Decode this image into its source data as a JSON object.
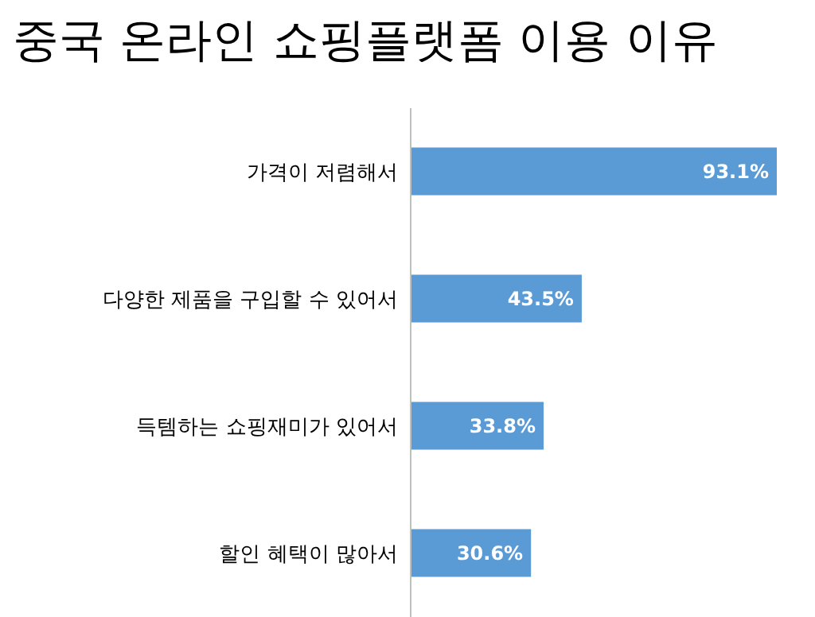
{
  "chart_data": {
    "type": "bar",
    "orientation": "horizontal",
    "title": "중국 온라인 쇼핑플랫폼 이용 이유",
    "categories": [
      "가격이 저렴해서",
      "다양한 제품을 구입할 수 있어서",
      "득템하는 쇼핑재미가 있어서",
      "할인 혜택이 많아서"
    ],
    "values": [
      93.1,
      43.5,
      33.8,
      30.6
    ],
    "value_labels": [
      "93.1%",
      "43.5%",
      "33.8%",
      "30.6%"
    ],
    "color": "#5b9bd5",
    "tick_labels": "y"
  }
}
